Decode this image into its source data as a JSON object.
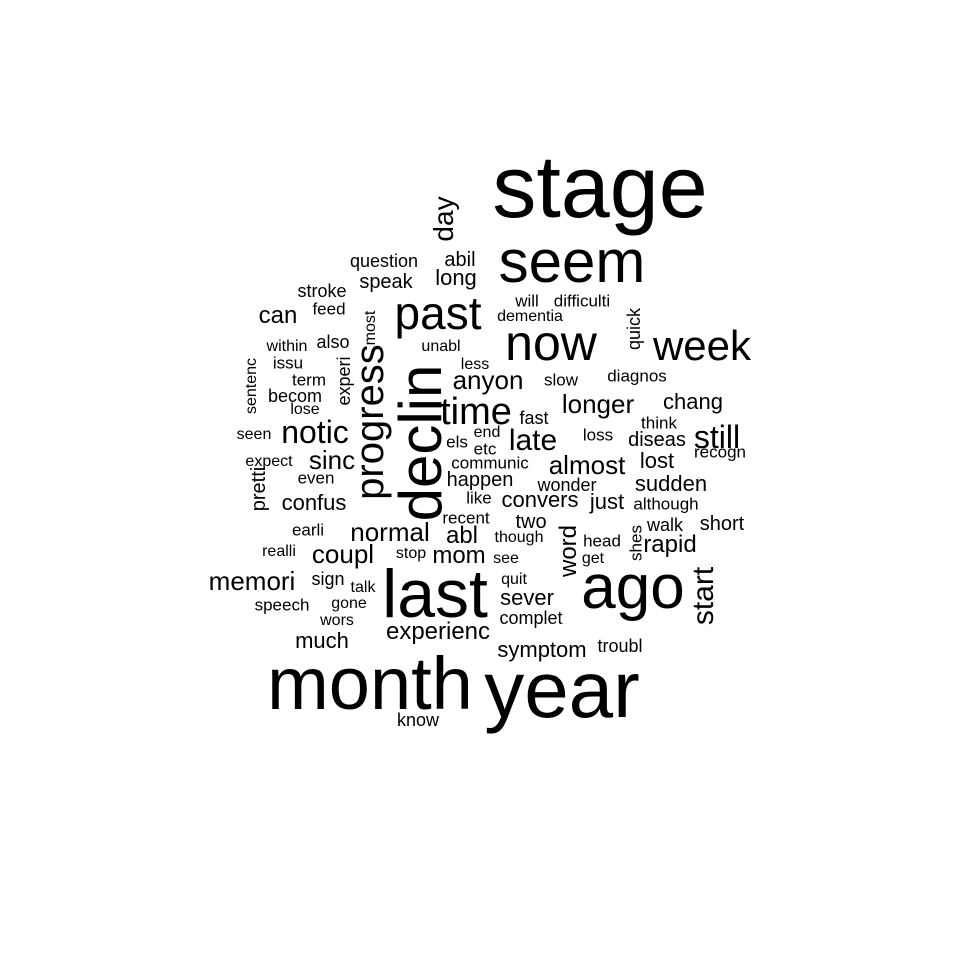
{
  "word_cloud": {
    "text_color": "#000000",
    "background": "#ffffff",
    "words": [
      {
        "text": "stage",
        "weight": 88
      },
      {
        "text": "year",
        "weight": 80
      },
      {
        "text": "month",
        "weight": 74
      },
      {
        "text": "last",
        "weight": 68
      },
      {
        "text": "ago",
        "weight": 62
      },
      {
        "text": "declin",
        "weight": 60
      },
      {
        "text": "seem",
        "weight": 60
      },
      {
        "text": "now",
        "weight": 50
      },
      {
        "text": "past",
        "weight": 46
      },
      {
        "text": "week",
        "weight": 42
      },
      {
        "text": "progress",
        "weight": 40
      },
      {
        "text": "time",
        "weight": 38
      },
      {
        "text": "notic",
        "weight": 32
      },
      {
        "text": "still",
        "weight": 32
      },
      {
        "text": "late",
        "weight": 30
      },
      {
        "text": "start",
        "weight": 30
      },
      {
        "text": "day",
        "weight": 28
      },
      {
        "text": "memori",
        "weight": 26
      },
      {
        "text": "coupl",
        "weight": 26
      },
      {
        "text": "normal",
        "weight": 26
      },
      {
        "text": "sinc",
        "weight": 26
      },
      {
        "text": "anyon",
        "weight": 26
      },
      {
        "text": "longer",
        "weight": 26
      },
      {
        "text": "almost",
        "weight": 26
      },
      {
        "text": "experienc",
        "weight": 24
      },
      {
        "text": "can",
        "weight": 24
      },
      {
        "text": "mom",
        "weight": 24
      },
      {
        "text": "rapid",
        "weight": 24
      },
      {
        "text": "word",
        "weight": 24
      },
      {
        "text": "abl",
        "weight": 24
      },
      {
        "text": "much",
        "weight": 22
      },
      {
        "text": "sever",
        "weight": 22
      },
      {
        "text": "confus",
        "weight": 22
      },
      {
        "text": "lost",
        "weight": 22
      },
      {
        "text": "sudden",
        "weight": 22
      },
      {
        "text": "symptom",
        "weight": 22
      },
      {
        "text": "long",
        "weight": 22
      },
      {
        "text": "convers",
        "weight": 22
      },
      {
        "text": "just",
        "weight": 22
      },
      {
        "text": "chang",
        "weight": 22
      },
      {
        "text": "pretti",
        "weight": 20
      },
      {
        "text": "speak",
        "weight": 20
      },
      {
        "text": "two",
        "weight": 20
      },
      {
        "text": "diseas",
        "weight": 20
      },
      {
        "text": "short",
        "weight": 20
      },
      {
        "text": "happen",
        "weight": 20
      },
      {
        "text": "abil",
        "weight": 20
      },
      {
        "text": "question",
        "weight": 18
      },
      {
        "text": "stroke",
        "weight": 18
      },
      {
        "text": "wonder",
        "weight": 18
      },
      {
        "text": "walk",
        "weight": 18
      },
      {
        "text": "quick",
        "weight": 18
      },
      {
        "text": "experi",
        "weight": 18
      },
      {
        "text": "complet",
        "weight": 18
      },
      {
        "text": "troubl",
        "weight": 18
      },
      {
        "text": "know",
        "weight": 18
      },
      {
        "text": "becom",
        "weight": 18
      },
      {
        "text": "also",
        "weight": 18
      },
      {
        "text": "fast",
        "weight": 18
      },
      {
        "text": "sign",
        "weight": 18
      },
      {
        "text": "speech",
        "weight": 17
      },
      {
        "text": "will",
        "weight": 17
      },
      {
        "text": "difficulti",
        "weight": 17
      },
      {
        "text": "diagnos",
        "weight": 17
      },
      {
        "text": "slow",
        "weight": 17
      },
      {
        "text": "loss",
        "weight": 17
      },
      {
        "text": "recogn",
        "weight": 17
      },
      {
        "text": "although",
        "weight": 17
      },
      {
        "text": "head",
        "weight": 17
      },
      {
        "text": "shes",
        "weight": 17
      },
      {
        "text": "think",
        "weight": 17
      },
      {
        "text": "term",
        "weight": 17
      },
      {
        "text": "issu",
        "weight": 17
      },
      {
        "text": "feed",
        "weight": 17
      },
      {
        "text": "even",
        "weight": 17
      },
      {
        "text": "earli",
        "weight": 17
      },
      {
        "text": "recent",
        "weight": 17
      },
      {
        "text": "like",
        "weight": 17
      },
      {
        "text": "communic",
        "weight": 17
      },
      {
        "text": "els",
        "weight": 17
      },
      {
        "text": "etc",
        "weight": 17
      },
      {
        "text": "end",
        "weight": 16
      },
      {
        "text": "dementia",
        "weight": 16
      },
      {
        "text": "unabl",
        "weight": 16
      },
      {
        "text": "less",
        "weight": 16
      },
      {
        "text": "most",
        "weight": 16
      },
      {
        "text": "within",
        "weight": 16
      },
      {
        "text": "sentenc",
        "weight": 16
      },
      {
        "text": "lose",
        "weight": 16
      },
      {
        "text": "seen",
        "weight": 16
      },
      {
        "text": "expect",
        "weight": 16
      },
      {
        "text": "realli",
        "weight": 16
      },
      {
        "text": "talk",
        "weight": 16
      },
      {
        "text": "gone",
        "weight": 16
      },
      {
        "text": "wors",
        "weight": 16
      },
      {
        "text": "stop",
        "weight": 16
      },
      {
        "text": "though",
        "weight": 16
      },
      {
        "text": "see",
        "weight": 16
      },
      {
        "text": "quit",
        "weight": 16
      },
      {
        "text": "get",
        "weight": 16
      }
    ]
  }
}
